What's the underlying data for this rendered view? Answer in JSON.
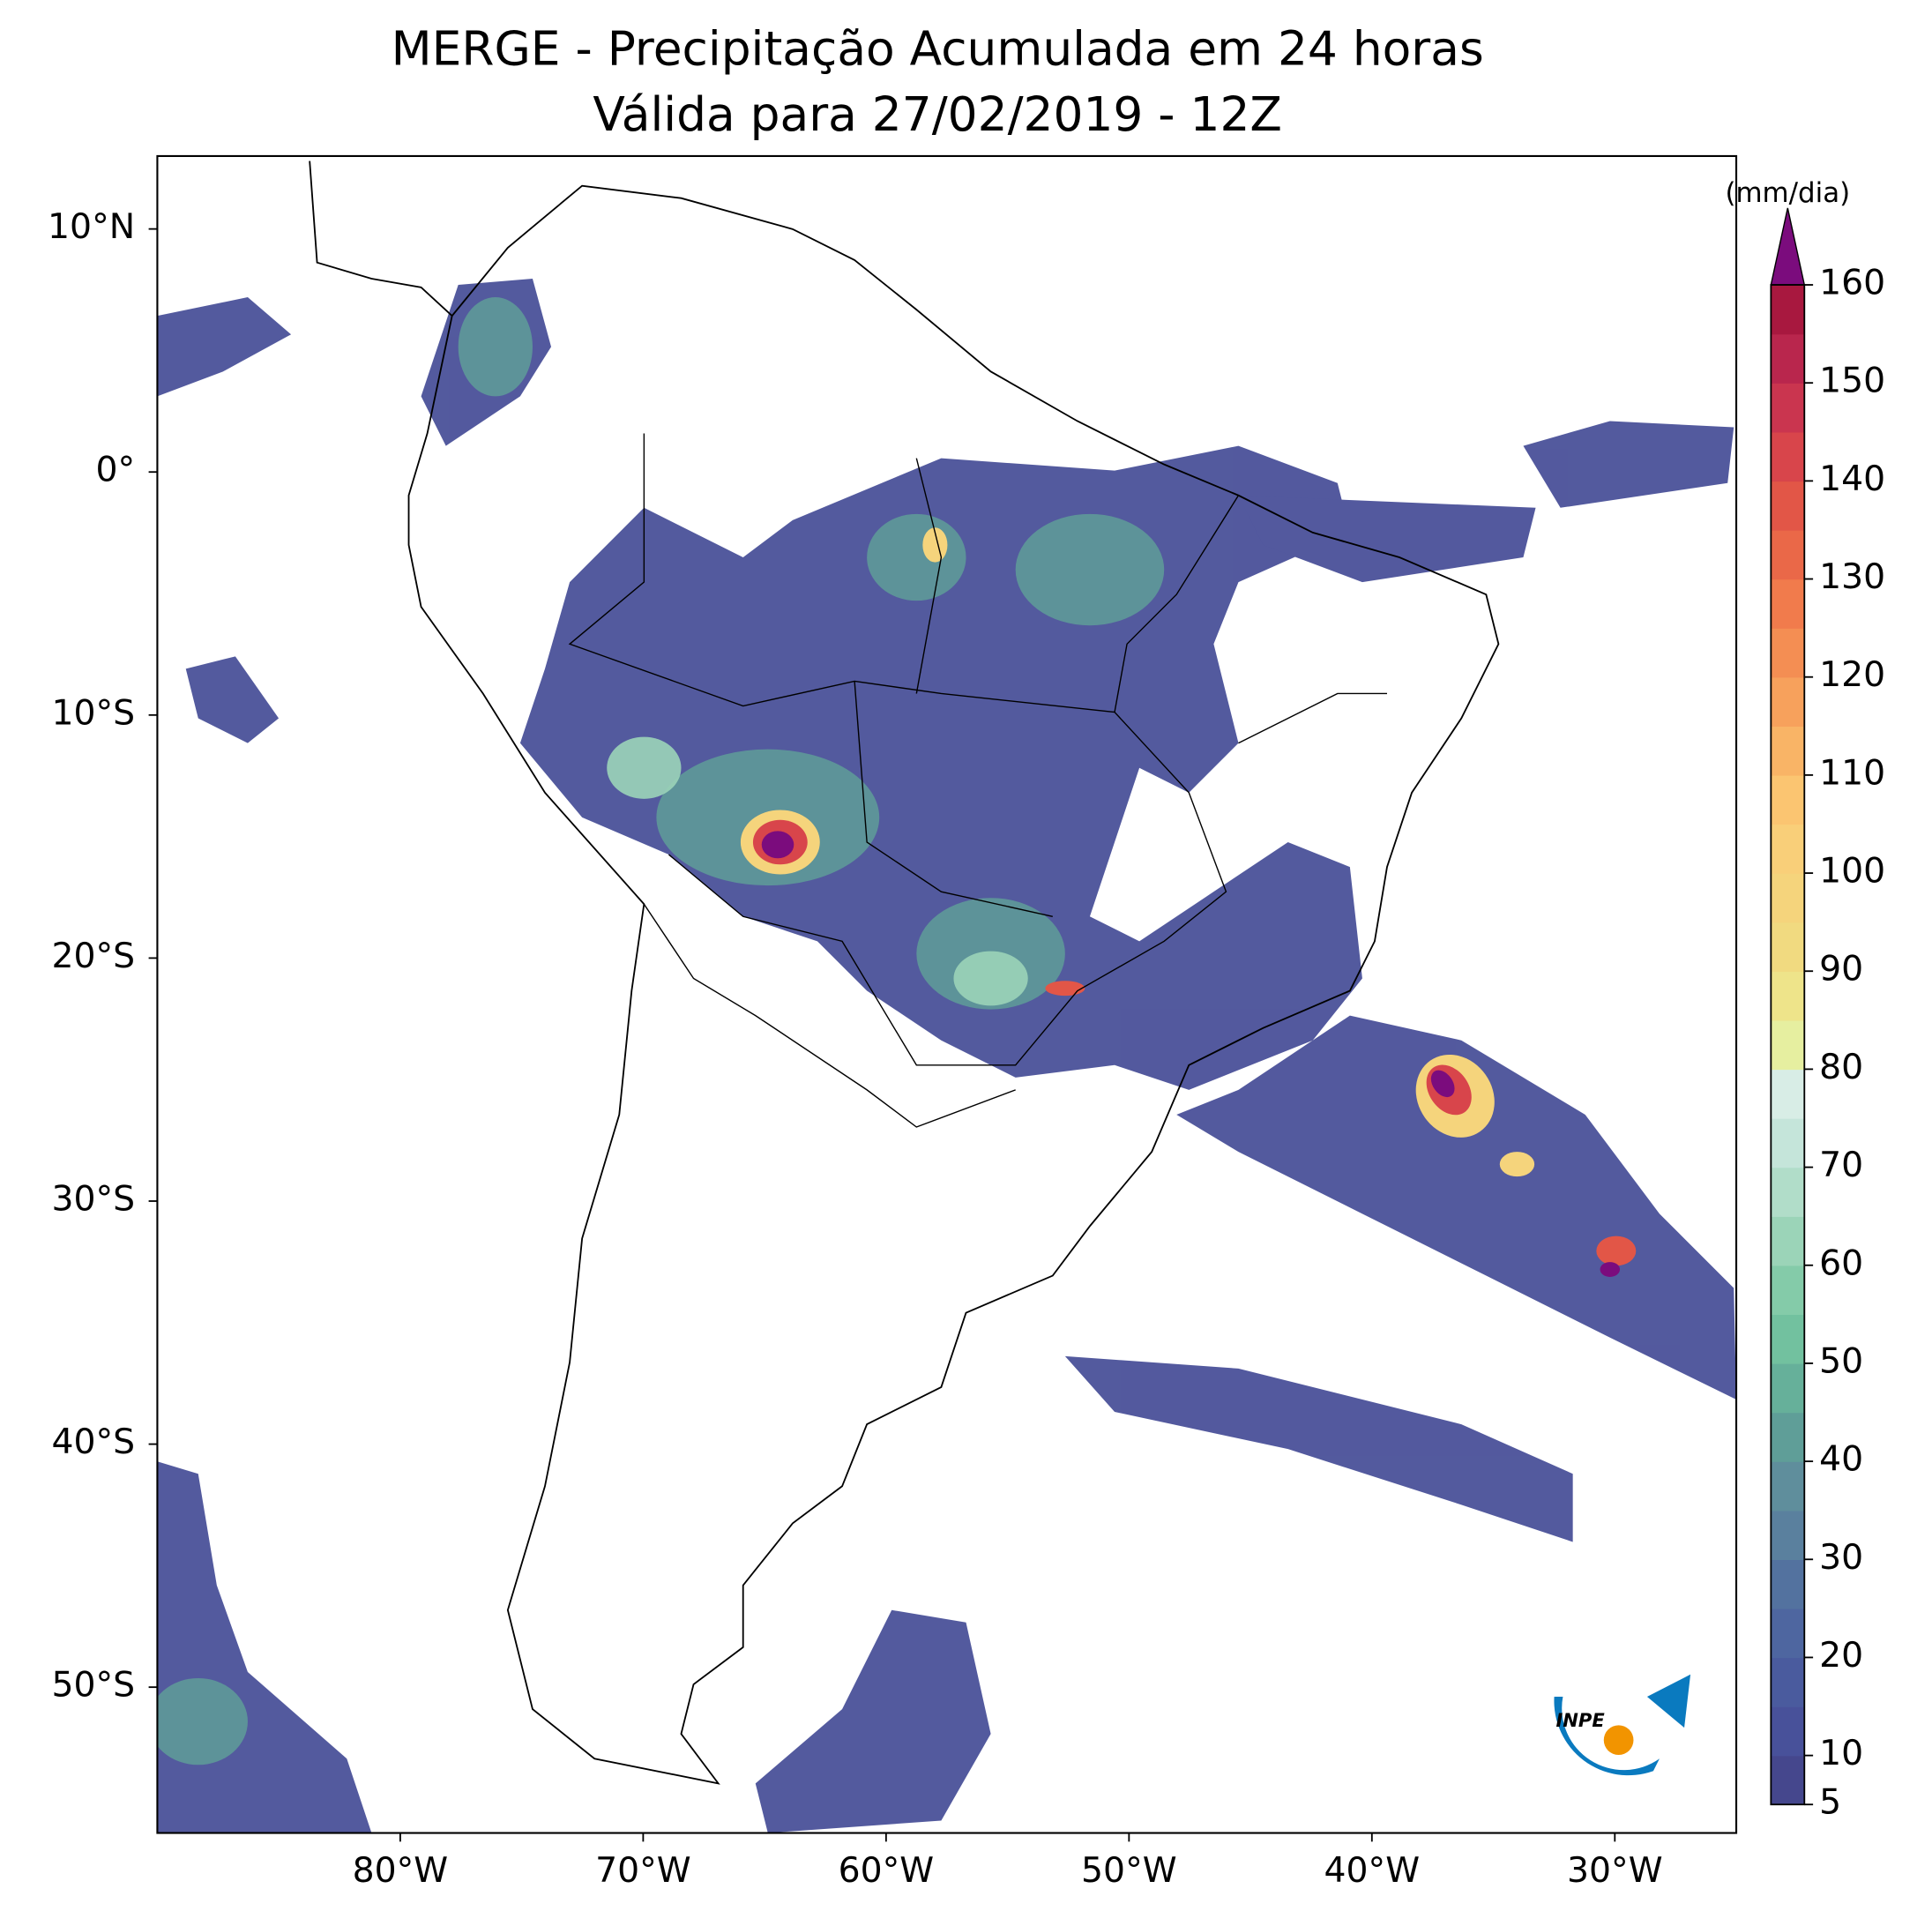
{
  "chart_data": {
    "type": "contourf_map",
    "title": "MERGE - Precipitação Acumulada em 24 horas",
    "subtitle": "Válida para 27/02/2019 - 12Z",
    "xlim": [
      -90,
      -25
    ],
    "ylim": [
      -56,
      13
    ],
    "xticks": [
      {
        "value": -80,
        "label": "80°W"
      },
      {
        "value": -70,
        "label": "70°W"
      },
      {
        "value": -60,
        "label": "60°W"
      },
      {
        "value": -50,
        "label": "50°W"
      },
      {
        "value": -40,
        "label": "40°W"
      },
      {
        "value": -30,
        "label": "30°W"
      }
    ],
    "yticks": [
      {
        "value": 10,
        "label": "10°N"
      },
      {
        "value": 0,
        "label": "0°"
      },
      {
        "value": -10,
        "label": "10°S"
      },
      {
        "value": -20,
        "label": "20°S"
      },
      {
        "value": -30,
        "label": "30°S"
      },
      {
        "value": -40,
        "label": "40°S"
      },
      {
        "value": -50,
        "label": "50°S"
      }
    ],
    "colorbar": {
      "label": "(mm/dia)",
      "lim": [
        5,
        160
      ],
      "ticks": [
        5,
        10,
        20,
        30,
        40,
        50,
        60,
        70,
        80,
        90,
        100,
        110,
        120,
        130,
        140,
        150,
        160
      ],
      "colors": [
        "#45478d",
        "#48519a",
        "#4a5b9e",
        "#4e66a0",
        "#53729f",
        "#5a809e",
        "#5f8e9c",
        "#5f9e98",
        "#66b09a",
        "#72c19f",
        "#84cba9",
        "#9bd4b8",
        "#b1ddc9",
        "#c5e5da",
        "#d8ede6",
        "#e6efa0",
        "#eee48a",
        "#f1da80",
        "#f5d47c",
        "#f9cf79",
        "#fbc571",
        "#f9b466",
        "#f7a15c",
        "#f48e53",
        "#f17b4c",
        "#ea6848",
        "#e25647",
        "#d8454b",
        "#ca354f",
        "#b9264d",
        "#a8183f"
      ],
      "extend_color": "#7b0c7d"
    },
    "logo": "INPE"
  }
}
